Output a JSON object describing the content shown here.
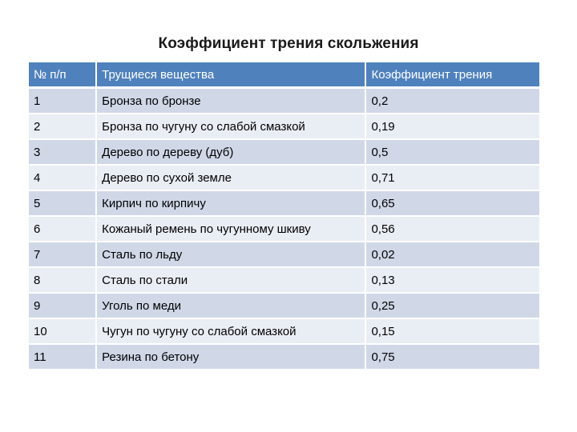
{
  "title": "Коэффициент трения скольжения",
  "table": {
    "headers": [
      "№ п/п",
      "Трущиеся вещества",
      "Коэффициент трения"
    ],
    "rows": [
      [
        "1",
        "Бронза по бронзе",
        "0,2"
      ],
      [
        "2",
        "Бронза по чугуну со слабой смазкой",
        "0,19"
      ],
      [
        "3",
        "Дерево по дереву (дуб)",
        "0,5"
      ],
      [
        "4",
        "Дерево по сухой земле",
        "0,71"
      ],
      [
        "5",
        "Кирпич по кирпичу",
        "0,65"
      ],
      [
        "6",
        "Кожаный ремень по чугунному шкиву",
        "0,56"
      ],
      [
        "7",
        "Сталь по льду",
        "0,02"
      ],
      [
        "8",
        "Сталь по стали",
        "0,13"
      ],
      [
        "9",
        "Уголь по меди",
        "0,25"
      ],
      [
        "10",
        "Чугун по чугуну со слабой смазкой",
        "0,15"
      ],
      [
        "11",
        "Резина по бетону",
        "0,75"
      ]
    ]
  },
  "colors": {
    "header_bg": "#4f81bd",
    "row_odd_bg": "#d0d8e8",
    "row_even_bg": "#e9edf4"
  }
}
